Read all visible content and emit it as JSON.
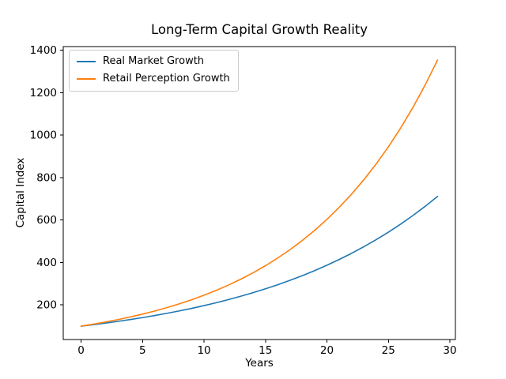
{
  "chart_data": {
    "type": "line",
    "title": "Long-Term Capital Growth Reality",
    "xlabel": "Years",
    "ylabel": "Capital Index",
    "x": [
      0,
      1,
      2,
      3,
      4,
      5,
      6,
      7,
      8,
      9,
      10,
      11,
      12,
      13,
      14,
      15,
      16,
      17,
      18,
      19,
      20,
      21,
      22,
      23,
      24,
      25,
      26,
      27,
      28,
      29
    ],
    "series": [
      {
        "name": "Real Market Growth",
        "color": "#1f77b4",
        "values": [
          100.0,
          107.0,
          114.5,
          122.5,
          131.1,
          140.3,
          150.1,
          160.6,
          171.8,
          183.8,
          196.7,
          210.5,
          225.2,
          241.0,
          257.9,
          275.9,
          295.2,
          315.9,
          338.0,
          361.6,
          387.0,
          414.1,
          443.0,
          474.1,
          507.2,
          542.7,
          580.7,
          621.4,
          664.9,
          711.4
        ]
      },
      {
        "name": "Retail Perception Growth",
        "color": "#ff7f0e",
        "values": [
          100.0,
          109.4,
          119.7,
          130.9,
          143.2,
          156.7,
          171.4,
          187.6,
          205.2,
          224.5,
          245.6,
          268.6,
          293.9,
          321.5,
          351.7,
          384.8,
          421.0,
          460.5,
          503.8,
          551.2,
          603.0,
          659.7,
          721.7,
          789.5,
          863.8,
          944.9,
          1033.8,
          1130.9,
          1237.3,
          1353.6
        ]
      }
    ],
    "xlim": [
      -1.45,
      30.45
    ],
    "ylim": [
      37,
      1417
    ],
    "xticks": [
      0,
      5,
      10,
      15,
      20,
      25,
      30
    ],
    "yticks": [
      200,
      400,
      600,
      800,
      1000,
      1200,
      1400
    ],
    "grid": false,
    "legend_position": "upper left",
    "axis_color": "#000000",
    "background_color": "#ffffff"
  }
}
